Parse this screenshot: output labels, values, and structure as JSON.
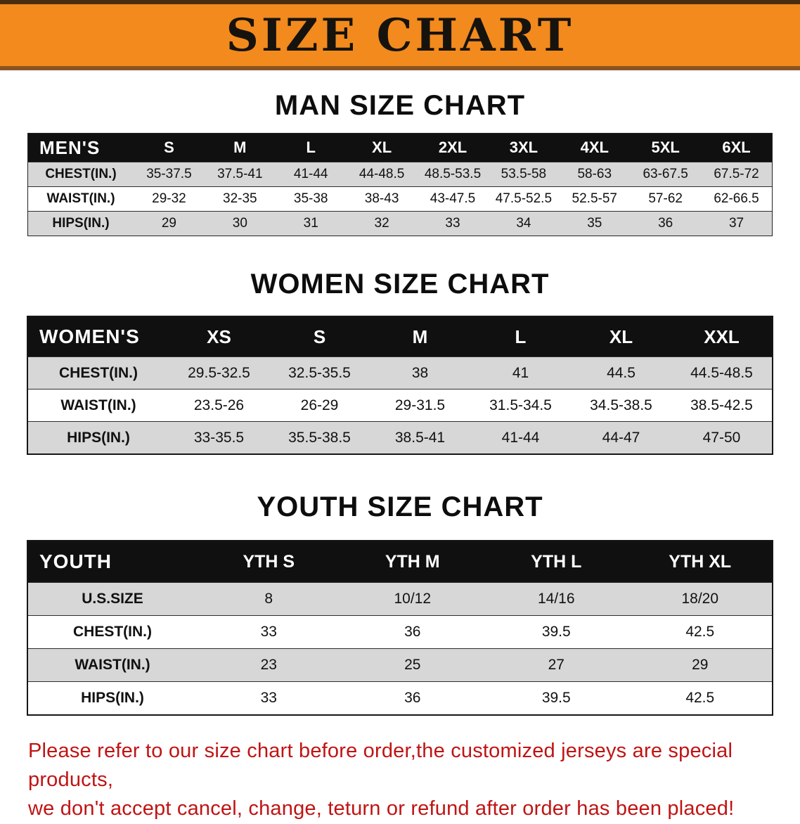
{
  "banner": {
    "title": "SIZE CHART",
    "bg_color": "#f28a1e"
  },
  "men": {
    "heading": "MAN SIZE CHART",
    "corner": "MEN'S",
    "sizes": [
      "S",
      "M",
      "L",
      "XL",
      "2XL",
      "3XL",
      "4XL",
      "5XL",
      "6XL"
    ],
    "rows": [
      {
        "label": "CHEST(IN.)",
        "values": [
          "35-37.5",
          "37.5-41",
          "41-44",
          "44-48.5",
          "48.5-53.5",
          "53.5-58",
          "58-63",
          "63-67.5",
          "67.5-72"
        ]
      },
      {
        "label": "WAIST(IN.)",
        "values": [
          "29-32",
          "32-35",
          "35-38",
          "38-43",
          "43-47.5",
          "47.5-52.5",
          "52.5-57",
          "57-62",
          "62-66.5"
        ]
      },
      {
        "label": "HIPS(IN.)",
        "values": [
          "29",
          "30",
          "31",
          "32",
          "33",
          "34",
          "35",
          "36",
          "37"
        ]
      }
    ]
  },
  "women": {
    "heading": "WOMEN SIZE CHART",
    "corner": "WOMEN'S",
    "sizes": [
      "XS",
      "S",
      "M",
      "L",
      "XL",
      "XXL"
    ],
    "rows": [
      {
        "label": "CHEST(IN.)",
        "values": [
          "29.5-32.5",
          "32.5-35.5",
          "38",
          "41",
          "44.5",
          "44.5-48.5"
        ]
      },
      {
        "label": "WAIST(IN.)",
        "values": [
          "23.5-26",
          "26-29",
          "29-31.5",
          "31.5-34.5",
          "34.5-38.5",
          "38.5-42.5"
        ]
      },
      {
        "label": "HIPS(IN.)",
        "values": [
          "33-35.5",
          "35.5-38.5",
          "38.5-41",
          "41-44",
          "44-47",
          "47-50"
        ]
      }
    ]
  },
  "youth": {
    "heading": "YOUTH SIZE CHART",
    "corner": "YOUTH",
    "sizes": [
      "YTH S",
      "YTH M",
      "YTH L",
      "YTH XL"
    ],
    "rows": [
      {
        "label": "U.S.SIZE",
        "values": [
          "8",
          "10/12",
          "14/16",
          "18/20"
        ]
      },
      {
        "label": "CHEST(IN.)",
        "values": [
          "33",
          "36",
          "39.5",
          "42.5"
        ]
      },
      {
        "label": "WAIST(IN.)",
        "values": [
          "23",
          "25",
          "27",
          "29"
        ]
      },
      {
        "label": "HIPS(IN.)",
        "values": [
          "33",
          "36",
          "39.5",
          "42.5"
        ]
      }
    ]
  },
  "footer": {
    "line1": "Please refer to our size chart before order,the customized jerseys are special products,",
    "line2": "we don't accept cancel, change, teturn or refund after order has been placed!"
  }
}
